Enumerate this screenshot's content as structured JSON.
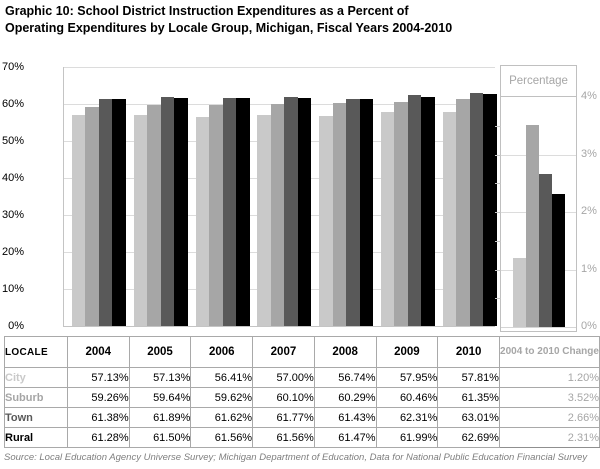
{
  "title": {
    "line1": "Graphic 10: School District Instruction Expenditures as a Percent of",
    "line2": "Operating Expenditures by Locale Group, Michigan, Fiscal Years 2004-2010"
  },
  "source": "Source: Local Education Agency Universe Survey; Michigan Department of Education, Data for National Public Education Financial Survey",
  "colors": {
    "city": "#c9c9c9",
    "suburb": "#a6a6a6",
    "town": "#595959",
    "rural": "#000000",
    "gridline": "#dcdcdc",
    "muted_text": "#a6a6a6"
  },
  "chart_data": [
    {
      "type": "bar",
      "title": "",
      "categories": [
        "2004",
        "2005",
        "2006",
        "2007",
        "2008",
        "2009",
        "2010"
      ],
      "series": [
        {
          "name": "City",
          "color": "#c9c9c9",
          "values": [
            57.13,
            57.13,
            56.41,
            57.0,
            56.74,
            57.95,
            57.81
          ]
        },
        {
          "name": "Suburb",
          "color": "#a6a6a6",
          "values": [
            59.26,
            59.64,
            59.62,
            60.1,
            60.29,
            60.46,
            61.35
          ]
        },
        {
          "name": "Town",
          "color": "#595959",
          "values": [
            61.38,
            61.89,
            61.62,
            61.77,
            61.43,
            62.31,
            63.01
          ]
        },
        {
          "name": "Rural",
          "color": "#000000",
          "values": [
            61.28,
            61.5,
            61.56,
            61.56,
            61.47,
            61.99,
            62.69
          ]
        }
      ],
      "xlabel": "",
      "ylabel": "",
      "ylim": [
        0,
        70
      ],
      "y_ticks": [
        "70%",
        "60%",
        "50%",
        "40%",
        "30%",
        "20%",
        "10%",
        "0%"
      ],
      "grid": true,
      "legend_position": "none"
    },
    {
      "type": "bar",
      "title": "Percentage",
      "categories": [
        "2004 to 2010 Change"
      ],
      "series": [
        {
          "name": "City",
          "color": "#c9c9c9",
          "values": [
            1.2
          ]
        },
        {
          "name": "Suburb",
          "color": "#a6a6a6",
          "values": [
            3.52
          ]
        },
        {
          "name": "Town",
          "color": "#595959",
          "values": [
            2.66
          ]
        },
        {
          "name": "Rural",
          "color": "#000000",
          "values": [
            2.31
          ]
        }
      ],
      "xlabel": "",
      "ylabel": "",
      "ylim": [
        0,
        4
      ],
      "y_ticks": [
        "4%",
        "3%",
        "2%",
        "1%",
        "0%"
      ],
      "grid": true,
      "legend_position": "none"
    }
  ],
  "table": {
    "header": [
      "LOCALE",
      "2004",
      "2005",
      "2006",
      "2007",
      "2008",
      "2009",
      "2010",
      "2004 to 2010 Change"
    ],
    "change_text_color": "#a6a6a6",
    "rows": [
      {
        "label": "City",
        "label_color": "#c9c9c9",
        "bold": true,
        "values": [
          "57.13%",
          "57.13%",
          "56.41%",
          "57.00%",
          "56.74%",
          "57.95%",
          "57.81%"
        ],
        "change": "1.20%"
      },
      {
        "label": "Suburb",
        "label_color": "#a6a6a6",
        "bold": true,
        "values": [
          "59.26%",
          "59.64%",
          "59.62%",
          "60.10%",
          "60.29%",
          "60.46%",
          "61.35%"
        ],
        "change": "3.52%"
      },
      {
        "label": "Town",
        "label_color": "#595959",
        "bold": true,
        "values": [
          "61.38%",
          "61.89%",
          "61.62%",
          "61.77%",
          "61.43%",
          "62.31%",
          "63.01%"
        ],
        "change": "2.66%"
      },
      {
        "label": "Rural",
        "label_color": "#000000",
        "bold": true,
        "values": [
          "61.28%",
          "61.50%",
          "61.56%",
          "61.56%",
          "61.47%",
          "61.99%",
          "62.69%"
        ],
        "change": "2.31%"
      }
    ]
  }
}
